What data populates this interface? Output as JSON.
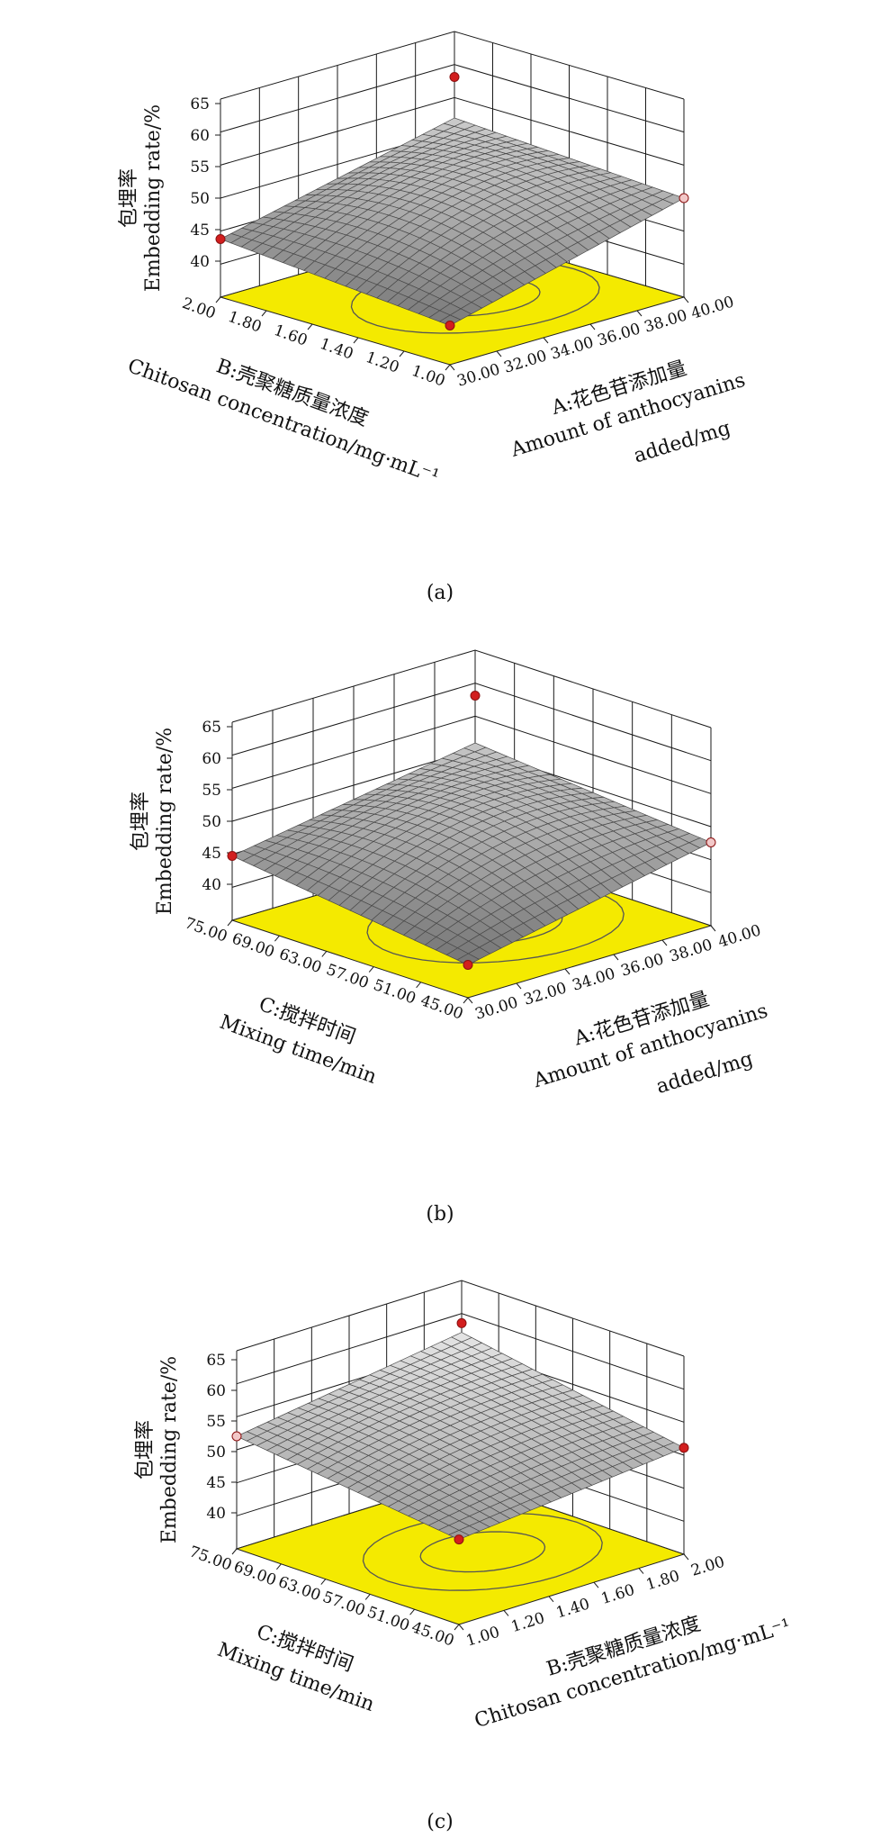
{
  "chart_data": [
    {
      "type": "surface3d",
      "caption": "(a)",
      "zlabel": [
        "包埋率",
        "Embedding rate/%"
      ],
      "zticks": [
        "40",
        "45",
        "50",
        "55",
        "60",
        "65"
      ],
      "zlim": [
        40,
        65
      ],
      "x_axis": {
        "title": [
          "A:花色苷添加量",
          "Amount of anthocyanins",
          "added/mg"
        ],
        "ticks": [
          "30.00",
          "32.00",
          "34.00",
          "36.00",
          "38.00",
          "40.00"
        ],
        "range": [
          30,
          40
        ]
      },
      "y_axis": {
        "title": [
          "B:壳聚糖质量浓度",
          "Chitosan concentration/mg·mL⁻¹"
        ],
        "ticks": [
          "1.00",
          "1.20",
          "1.40",
          "1.60",
          "1.80",
          "2.00"
        ],
        "range": [
          1,
          2
        ]
      },
      "surface": {
        "peak": 58.5,
        "corner_front": 40.5,
        "corner_left": 43.5,
        "corner_right": 50.0,
        "corner_back": 52.0
      },
      "design_points": [
        58.5,
        43.5,
        40.5,
        50.0
      ]
    },
    {
      "type": "surface3d",
      "caption": "(b)",
      "zlabel": [
        "包埋率",
        "Embedding rate/%"
      ],
      "zticks": [
        "40",
        "45",
        "50",
        "55",
        "60",
        "65"
      ],
      "zlim": [
        40,
        65
      ],
      "x_axis": {
        "title": [
          "A:花色苷添加量",
          "Amount of anthocyanins",
          "added/mg"
        ],
        "ticks": [
          "30.00",
          "32.00",
          "34.00",
          "36.00",
          "38.00",
          "40.00"
        ],
        "range": [
          30,
          40
        ]
      },
      "y_axis": {
        "title": [
          "C:搅拌时间",
          "Mixing time/min"
        ],
        "ticks": [
          "45.00",
          "51.00",
          "57.00",
          "63.00",
          "69.00",
          "75.00"
        ],
        "range": [
          45,
          75
        ]
      },
      "surface": {
        "peak": 58.5,
        "corner_front": 39.5,
        "corner_left": 44.5,
        "corner_right": 47.5,
        "corner_back": 51.0
      },
      "design_points": [
        58.5,
        44.5,
        39.5,
        47.5
      ]
    },
    {
      "type": "surface3d",
      "caption": "(c)",
      "zlabel": [
        "包埋率",
        "Embedding rate/%"
      ],
      "zticks": [
        "40",
        "45",
        "50",
        "55",
        "60",
        "65"
      ],
      "zlim": [
        40,
        65
      ],
      "x_axis": {
        "title": [
          "B:壳聚糖质量浓度",
          "Chitosan concentration/mg·mL⁻¹"
        ],
        "ticks": [
          "1.00",
          "1.20",
          "1.40",
          "1.60",
          "1.80",
          "2.00"
        ],
        "range": [
          1,
          2
        ]
      },
      "y_axis": {
        "title": [
          "C:搅拌时间",
          "Mixing time/min"
        ],
        "ticks": [
          "45.00",
          "51.00",
          "57.00",
          "63.00",
          "69.00",
          "75.00"
        ],
        "range": [
          45,
          75
        ]
      },
      "surface": {
        "peak": 57.0,
        "corner_front": 48.0,
        "corner_left": 52.5,
        "corner_right": 51.5,
        "corner_back": 58.0
      },
      "design_points": [
        59.5,
        52.5,
        48.0,
        51.5
      ]
    }
  ],
  "colors": {
    "floor": "#f4ea00",
    "surface_light": "#d9d9d9",
    "surface_dark": "#7a7a7a",
    "design_point": "#d21e1e"
  }
}
